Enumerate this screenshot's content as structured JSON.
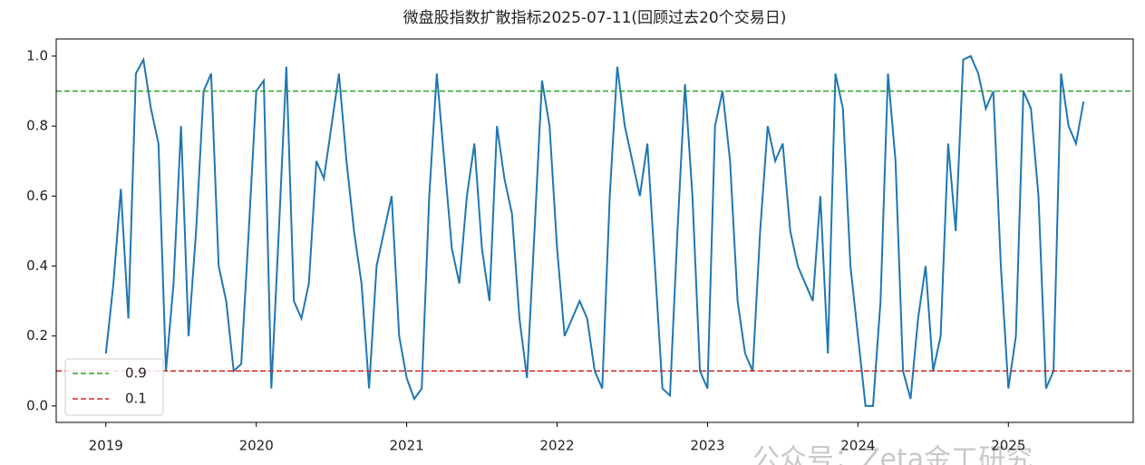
{
  "chart_data": {
    "type": "line",
    "title": "微盘股指数扩散指标2025-07-11(回顾过去20个交易日)",
    "x": [
      2019.0,
      2019.05,
      2019.1,
      2019.15,
      2019.2,
      2019.25,
      2019.3,
      2019.35,
      2019.4,
      2019.45,
      2019.5,
      2019.55,
      2019.6,
      2019.65,
      2019.7,
      2019.75,
      2019.8,
      2019.85,
      2019.9,
      2019.95,
      2020.0,
      2020.05,
      2020.1,
      2020.15,
      2020.2,
      2020.25,
      2020.3,
      2020.35,
      2020.4,
      2020.45,
      2020.5,
      2020.55,
      2020.6,
      2020.65,
      2020.7,
      2020.75,
      2020.8,
      2020.85,
      2020.9,
      2020.95,
      2021.0,
      2021.05,
      2021.1,
      2021.15,
      2021.2,
      2021.25,
      2021.3,
      2021.35,
      2021.4,
      2021.45,
      2021.5,
      2021.55,
      2021.6,
      2021.65,
      2021.7,
      2021.75,
      2021.8,
      2021.85,
      2021.9,
      2021.95,
      2022.0,
      2022.05,
      2022.1,
      2022.15,
      2022.2,
      2022.25,
      2022.3,
      2022.35,
      2022.4,
      2022.45,
      2022.5,
      2022.55,
      2022.6,
      2022.65,
      2022.7,
      2022.75,
      2022.8,
      2022.85,
      2022.9,
      2022.95,
      2023.0,
      2023.05,
      2023.1,
      2023.15,
      2023.2,
      2023.25,
      2023.3,
      2023.35,
      2023.4,
      2023.45,
      2023.5,
      2023.55,
      2023.6,
      2023.65,
      2023.7,
      2023.75,
      2023.8,
      2023.85,
      2023.9,
      2023.95,
      2024.0,
      2024.05,
      2024.1,
      2024.15,
      2024.2,
      2024.25,
      2024.3,
      2024.35,
      2024.4,
      2024.45,
      2024.5,
      2024.55,
      2024.6,
      2024.65,
      2024.7,
      2024.75,
      2024.8,
      2024.85,
      2024.9,
      2024.95,
      2025.0,
      2025.05,
      2025.1,
      2025.15,
      2025.2,
      2025.25,
      2025.3,
      2025.35,
      2025.4,
      2025.45,
      2025.5
    ],
    "series": [
      {
        "color": "#1f77b4",
        "values": [
          0.15,
          0.35,
          0.62,
          0.25,
          0.95,
          0.99,
          0.85,
          0.75,
          0.1,
          0.35,
          0.8,
          0.2,
          0.5,
          0.9,
          0.95,
          0.4,
          0.3,
          0.1,
          0.12,
          0.5,
          0.9,
          0.93,
          0.05,
          0.5,
          0.97,
          0.3,
          0.25,
          0.35,
          0.7,
          0.65,
          0.8,
          0.95,
          0.7,
          0.5,
          0.35,
          0.05,
          0.4,
          0.5,
          0.6,
          0.2,
          0.08,
          0.02,
          0.05,
          0.6,
          0.95,
          0.7,
          0.45,
          0.35,
          0.6,
          0.75,
          0.45,
          0.3,
          0.8,
          0.65,
          0.55,
          0.25,
          0.08,
          0.5,
          0.93,
          0.8,
          0.45,
          0.2,
          0.25,
          0.3,
          0.25,
          0.1,
          0.05,
          0.6,
          0.97,
          0.8,
          0.7,
          0.6,
          0.75,
          0.4,
          0.05,
          0.03,
          0.5,
          0.92,
          0.6,
          0.1,
          0.05,
          0.8,
          0.9,
          0.7,
          0.3,
          0.15,
          0.1,
          0.5,
          0.8,
          0.7,
          0.75,
          0.5,
          0.4,
          0.35,
          0.3,
          0.6,
          0.15,
          0.95,
          0.85,
          0.4,
          0.2,
          0.0,
          0.0,
          0.3,
          0.95,
          0.7,
          0.1,
          0.02,
          0.25,
          0.4,
          0.1,
          0.2,
          0.75,
          0.5,
          0.99,
          1.0,
          0.95,
          0.85,
          0.9,
          0.4,
          0.05,
          0.2,
          0.9,
          0.85,
          0.6,
          0.05,
          0.1,
          0.95,
          0.8,
          0.75,
          0.87
        ]
      }
    ],
    "reference_lines": [
      {
        "name": "0.9",
        "value": 0.9,
        "color": "#2ca02c"
      },
      {
        "name": "0.1",
        "value": 0.1,
        "color": "#d62728"
      }
    ],
    "xlim": [
      2018.67,
      2025.83
    ],
    "xticks": [
      2019,
      2020,
      2021,
      2022,
      2023,
      2024,
      2025
    ],
    "ylim": [
      -0.047,
      1.049
    ],
    "yticks": [
      {
        "value": 0,
        "label": "0.0"
      },
      0.2,
      0.4,
      0.6,
      0.8,
      {
        "value": 1,
        "label": "1.0"
      }
    ],
    "legend": "lower left",
    "watermark": "公众号：Zeta金工研究"
  }
}
